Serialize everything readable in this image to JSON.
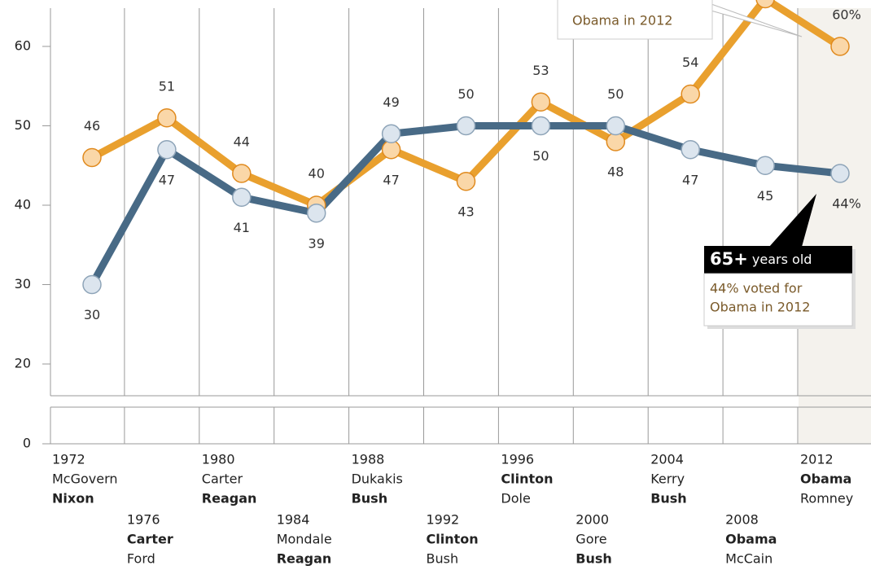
{
  "chart_data": {
    "type": "line",
    "categories": [
      "1972",
      "1976",
      "1980",
      "1984",
      "1988",
      "1992",
      "1996",
      "2000",
      "2004",
      "2008",
      "2012"
    ],
    "candidates": [
      [
        {
          "name": "McGovern",
          "winner": false
        },
        {
          "name": "Nixon",
          "winner": true
        }
      ],
      [
        {
          "name": "Carter",
          "winner": true
        },
        {
          "name": "Ford",
          "winner": false
        }
      ],
      [
        {
          "name": "Carter",
          "winner": false
        },
        {
          "name": "Reagan",
          "winner": true
        }
      ],
      [
        {
          "name": "Mondale",
          "winner": false
        },
        {
          "name": "Reagan",
          "winner": true
        }
      ],
      [
        {
          "name": "Dukakis",
          "winner": false
        },
        {
          "name": "Bush",
          "winner": true
        }
      ],
      [
        {
          "name": "Clinton",
          "winner": true
        },
        {
          "name": "Bush",
          "winner": false
        }
      ],
      [
        {
          "name": "Clinton",
          "winner": true
        },
        {
          "name": "Dole",
          "winner": false
        }
      ],
      [
        {
          "name": "Gore",
          "winner": false
        },
        {
          "name": "Bush",
          "winner": true
        }
      ],
      [
        {
          "name": "Kerry",
          "winner": false
        },
        {
          "name": "Bush",
          "winner": true
        }
      ],
      [
        {
          "name": "Obama",
          "winner": true
        },
        {
          "name": "McCain",
          "winner": false
        }
      ],
      [
        {
          "name": "Obama",
          "winner": true
        },
        {
          "name": "Romney",
          "winner": false
        }
      ]
    ],
    "series": [
      {
        "color": "#e9a02e",
        "marker_fill": "#fad7a8",
        "marker_stroke": "#e08a1e",
        "values": [
          46,
          51,
          44,
          40,
          47,
          43,
          53,
          48,
          54,
          66,
          60
        ],
        "value_labels": [
          "46",
          "51",
          "44",
          "40",
          "47",
          "43",
          "53",
          "48",
          "54",
          null,
          "60%"
        ]
      },
      {
        "color": "#486a86",
        "marker_fill": "#dce5ee",
        "marker_stroke": "#8ea4b8",
        "values": [
          30,
          47,
          41,
          39,
          49,
          50,
          50,
          50,
          47,
          45,
          44
        ],
        "value_labels": [
          "30",
          "47",
          "41",
          "39",
          "49",
          "50",
          "50",
          "50",
          "47",
          "45",
          "44%"
        ]
      }
    ],
    "ylim": [
      0,
      65
    ],
    "axis_break": [
      0,
      20
    ],
    "yticks": [
      0,
      20,
      30,
      40,
      50,
      60
    ],
    "annotations": [
      {
        "lines": [
          "Obama in 2012"
        ]
      },
      {
        "header_bold": "65+",
        "header": "years old",
        "lines": [
          "44% voted for",
          "Obama in 2012"
        ]
      }
    ]
  }
}
